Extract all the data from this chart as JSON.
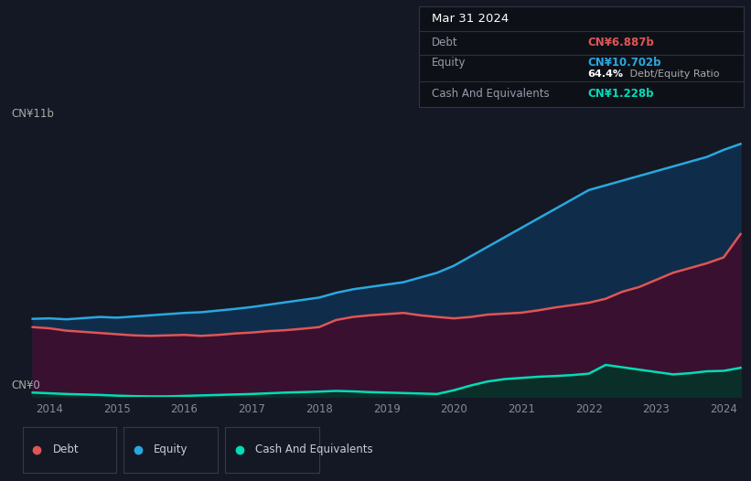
{
  "background_color": "#141824",
  "plot_bg_color": "#141824",
  "title_box": {
    "date": "Mar 31 2024",
    "debt_label": "Debt",
    "debt_value": "CN¥6.887b",
    "debt_color": "#e05555",
    "equity_label": "Equity",
    "equity_value": "CN¥10.702b",
    "equity_color": "#29a8e0",
    "ratio_bold": "64.4%",
    "ratio_rest": " Debt/Equity Ratio",
    "ratio_color": "#aaaaaa",
    "cash_label": "Cash And Equivalents",
    "cash_value": "CN¥1.228b",
    "cash_color": "#00ddb8",
    "box_bg": "#0d1117"
  },
  "ylabel_top": "CN¥11b",
  "ylabel_bottom": "CN¥0",
  "ylim": [
    0,
    11.5
  ],
  "xlim": [
    2013.6,
    2024.35
  ],
  "x_ticks": [
    2014,
    2015,
    2016,
    2017,
    2018,
    2019,
    2020,
    2021,
    2022,
    2023,
    2024
  ],
  "grid_color": "#252d3d",
  "equity_line_color": "#29a8e0",
  "equity_fill_color": "#0f2d4a",
  "debt_line_color": "#e05555",
  "debt_fill_color": "#3a1030",
  "cash_line_color": "#00ddb8",
  "cash_fill_color": "#0a2e28",
  "legend_items": [
    {
      "label": "Debt",
      "color": "#e05555"
    },
    {
      "label": "Equity",
      "color": "#29a8e0"
    },
    {
      "label": "Cash And Equivalents",
      "color": "#00ddb8"
    }
  ],
  "equity_x": [
    2013.75,
    2014.0,
    2014.25,
    2014.5,
    2014.75,
    2015.0,
    2015.25,
    2015.5,
    2015.75,
    2016.0,
    2016.25,
    2016.5,
    2016.75,
    2017.0,
    2017.25,
    2017.5,
    2017.75,
    2018.0,
    2018.25,
    2018.5,
    2018.75,
    2019.0,
    2019.25,
    2019.5,
    2019.75,
    2020.0,
    2020.25,
    2020.5,
    2020.75,
    2021.0,
    2021.25,
    2021.5,
    2021.75,
    2022.0,
    2022.25,
    2022.5,
    2022.75,
    2023.0,
    2023.25,
    2023.5,
    2023.75,
    2024.0,
    2024.25
  ],
  "equity_y": [
    3.3,
    3.32,
    3.28,
    3.33,
    3.38,
    3.35,
    3.4,
    3.45,
    3.5,
    3.55,
    3.58,
    3.65,
    3.72,
    3.8,
    3.9,
    4.0,
    4.1,
    4.2,
    4.4,
    4.55,
    4.65,
    4.75,
    4.85,
    5.05,
    5.25,
    5.55,
    5.95,
    6.35,
    6.75,
    7.15,
    7.55,
    7.95,
    8.35,
    8.75,
    8.95,
    9.15,
    9.35,
    9.55,
    9.75,
    9.95,
    10.15,
    10.45,
    10.702
  ],
  "debt_x": [
    2013.75,
    2014.0,
    2014.25,
    2014.5,
    2014.75,
    2015.0,
    2015.25,
    2015.5,
    2015.75,
    2016.0,
    2016.25,
    2016.5,
    2016.75,
    2017.0,
    2017.25,
    2017.5,
    2017.75,
    2018.0,
    2018.25,
    2018.5,
    2018.75,
    2019.0,
    2019.25,
    2019.5,
    2019.75,
    2020.0,
    2020.25,
    2020.5,
    2020.75,
    2021.0,
    2021.25,
    2021.5,
    2021.75,
    2022.0,
    2022.25,
    2022.5,
    2022.75,
    2023.0,
    2023.25,
    2023.5,
    2023.75,
    2024.0,
    2024.25
  ],
  "debt_y": [
    2.95,
    2.9,
    2.8,
    2.75,
    2.7,
    2.65,
    2.6,
    2.58,
    2.6,
    2.62,
    2.58,
    2.62,
    2.68,
    2.72,
    2.78,
    2.82,
    2.88,
    2.95,
    3.25,
    3.38,
    3.45,
    3.5,
    3.55,
    3.45,
    3.38,
    3.32,
    3.38,
    3.48,
    3.52,
    3.56,
    3.66,
    3.78,
    3.88,
    3.98,
    4.15,
    4.45,
    4.65,
    4.95,
    5.25,
    5.45,
    5.65,
    5.9,
    6.887
  ],
  "cash_x": [
    2013.75,
    2014.0,
    2014.25,
    2014.5,
    2014.75,
    2015.0,
    2015.25,
    2015.5,
    2015.75,
    2016.0,
    2016.25,
    2016.5,
    2016.75,
    2017.0,
    2017.25,
    2017.5,
    2017.75,
    2018.0,
    2018.25,
    2018.5,
    2018.75,
    2019.0,
    2019.25,
    2019.5,
    2019.75,
    2020.0,
    2020.25,
    2020.5,
    2020.75,
    2021.0,
    2021.25,
    2021.5,
    2021.75,
    2022.0,
    2022.25,
    2022.5,
    2022.75,
    2023.0,
    2023.25,
    2023.5,
    2023.75,
    2024.0,
    2024.25
  ],
  "cash_y": [
    0.18,
    0.15,
    0.12,
    0.1,
    0.08,
    0.05,
    0.03,
    0.02,
    0.02,
    0.04,
    0.06,
    0.08,
    0.1,
    0.12,
    0.15,
    0.18,
    0.2,
    0.22,
    0.25,
    0.23,
    0.2,
    0.18,
    0.16,
    0.14,
    0.12,
    0.28,
    0.48,
    0.65,
    0.75,
    0.8,
    0.85,
    0.88,
    0.92,
    0.98,
    1.35,
    1.25,
    1.15,
    1.05,
    0.95,
    1.0,
    1.08,
    1.1,
    1.228
  ]
}
